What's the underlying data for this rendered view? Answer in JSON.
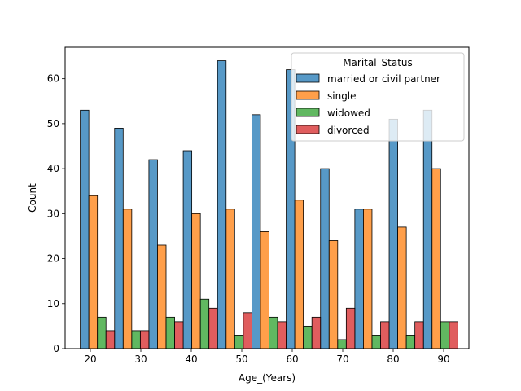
{
  "chart_data": {
    "type": "bar",
    "xlabel": "Age_(Years)",
    "ylabel": "Count",
    "xlim": [
      15,
      95
    ],
    "ylim": [
      0,
      67
    ],
    "xticks": [
      20,
      30,
      40,
      50,
      60,
      70,
      80,
      90
    ],
    "yticks": [
      0,
      10,
      20,
      30,
      40,
      50,
      60
    ],
    "bin_starts": [
      18,
      24.8,
      31.6,
      38.4,
      45.2,
      52,
      58.8,
      65.6,
      72.4,
      79.2,
      86
    ],
    "bin_width": 6.8,
    "legend": {
      "title": "Marital_Status",
      "placement": "upper right"
    },
    "series": [
      {
        "name": "married or civil partner",
        "color": "#1f77b4",
        "values": [
          53,
          49,
          42,
          44,
          64,
          52,
          62,
          40,
          31,
          51,
          53
        ]
      },
      {
        "name": "single",
        "color": "#ff7f0e",
        "values": [
          34,
          31,
          23,
          30,
          31,
          26,
          33,
          24,
          31,
          27,
          40
        ]
      },
      {
        "name": "widowed",
        "color": "#2ca02c",
        "values": [
          7,
          4,
          7,
          11,
          3,
          7,
          5,
          2,
          3,
          3,
          6
        ]
      },
      {
        "name": "divorced",
        "color": "#d62728",
        "values": [
          4,
          4,
          6,
          9,
          8,
          6,
          7,
          9,
          6,
          6,
          6
        ]
      }
    ]
  }
}
